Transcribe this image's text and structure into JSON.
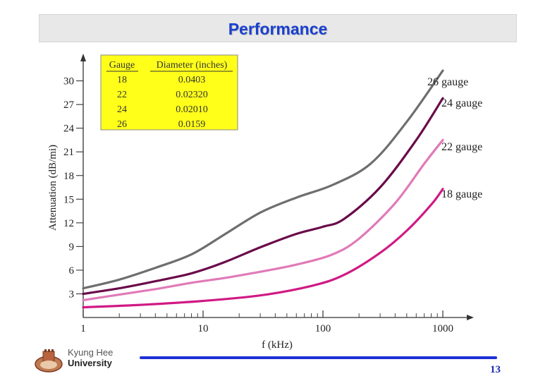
{
  "slide": {
    "title": "Performance",
    "organization_line1": "Kyung Hee",
    "organization_line2": "University",
    "page_number": "13"
  },
  "colors": {
    "title_text": "#1a40d0",
    "title_bar": "#e8e8e8",
    "legend_box": "#ffff1a",
    "footer_line": "#1f2fd6",
    "page_number": "#1a2bb0"
  },
  "chart_data": {
    "type": "line",
    "title": "",
    "xlabel": "f (kHz)",
    "ylabel": "Attenuation (dB/mi)",
    "xscale": "log",
    "xlim": [
      1,
      1000
    ],
    "ylim": [
      0,
      32
    ],
    "x_ticks": [
      "1",
      "10",
      "100",
      "1000"
    ],
    "x_tick_values": [
      1,
      10,
      100,
      1000
    ],
    "y_ticks": [
      3,
      6,
      9,
      12,
      15,
      18,
      21,
      24,
      27,
      30
    ],
    "legend_table": {
      "headers": [
        "Gauge",
        "Diameter (inches)"
      ],
      "rows": [
        [
          "18",
          "0.0403"
        ],
        [
          "22",
          "0.02320"
        ],
        [
          "24",
          "0.02010"
        ],
        [
          "26",
          "0.0159"
        ]
      ]
    },
    "series": [
      {
        "name": "26 gauge",
        "color": "#6e6e6e",
        "x": [
          1,
          2,
          4,
          8,
          15,
          30,
          60,
          120,
          250,
          500,
          1000
        ],
        "y": [
          3.7,
          4.8,
          6.3,
          8.0,
          10.5,
          13.3,
          15.2,
          16.8,
          19.5,
          24.8,
          31.3
        ]
      },
      {
        "name": "24 gauge",
        "color": "#6a0a4a",
        "x": [
          1,
          2,
          4,
          8,
          15,
          30,
          60,
          100,
          150,
          300,
          600,
          1000
        ],
        "y": [
          3.0,
          3.7,
          4.6,
          5.6,
          7.0,
          8.9,
          10.6,
          11.5,
          12.5,
          16.5,
          22.5,
          27.8
        ]
      },
      {
        "name": "22 gauge",
        "color": "#e07ab8",
        "x": [
          1,
          2,
          4,
          8,
          15,
          30,
          60,
          120,
          200,
          400,
          700,
          1000
        ],
        "y": [
          2.2,
          2.9,
          3.6,
          4.4,
          5.0,
          5.8,
          6.7,
          8.0,
          10.0,
          14.5,
          19.5,
          22.5
        ]
      },
      {
        "name": "18 gauge",
        "color": "#d01a84",
        "x": [
          1,
          3,
          10,
          30,
          80,
          150,
          300,
          500,
          800,
          1000
        ],
        "y": [
          1.3,
          1.6,
          2.1,
          2.8,
          4.0,
          5.4,
          8.2,
          11.0,
          14.3,
          16.3
        ]
      }
    ]
  }
}
